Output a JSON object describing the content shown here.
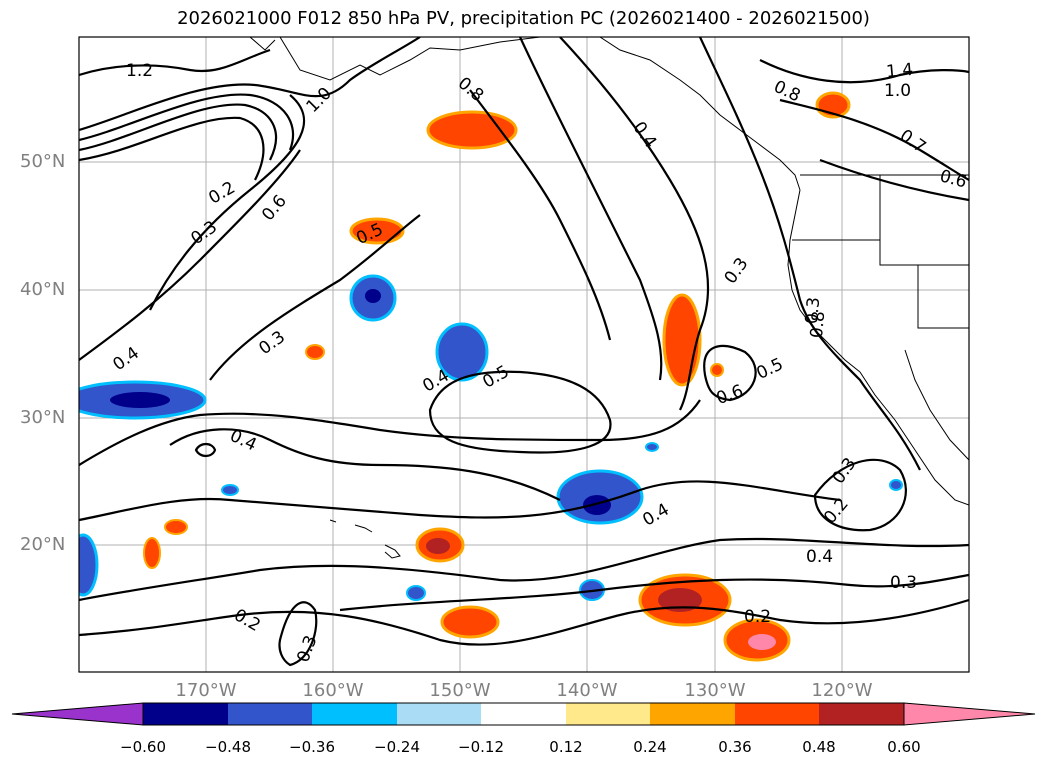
{
  "title": "2026021000 F012 850 hPa PV, precipitation PC (2026021400 - 2026021500)",
  "latitude_labels": [
    "50°N",
    "40°N",
    "30°N",
    "20°N"
  ],
  "longitude_labels": [
    "170°W",
    "160°W",
    "150°W",
    "140°W",
    "130°W",
    "120°W"
  ],
  "colorbar": {
    "ticks": [
      "−0.60",
      "−0.48",
      "−0.36",
      "−0.24",
      "−0.12",
      "0.12",
      "0.24",
      "0.36",
      "0.48",
      "0.60"
    ],
    "colors": [
      "#9933cc",
      "#00008b",
      "#3355cc",
      "#00bfff",
      "#aadcf5",
      "#ffffff",
      "#ffe98a",
      "#ffa500",
      "#ff4500",
      "#b22222",
      "#ff88aa"
    ]
  },
  "contour_labels": [
    "1.2",
    "1.0",
    "0.8",
    "0.4",
    "1.4",
    "1.0",
    "0.8",
    "0.7",
    "0.6",
    "0.2",
    "0.3",
    "0.6",
    "0.5",
    "0.3",
    "0.4",
    "0.3",
    "0.4",
    "0.5",
    "0.3",
    "0.8",
    "0.6",
    "0.5",
    "0.4",
    "0.4",
    "0.3",
    "0.2",
    "0.4",
    "0.3",
    "0.2",
    "0.3",
    "0.2"
  ]
}
